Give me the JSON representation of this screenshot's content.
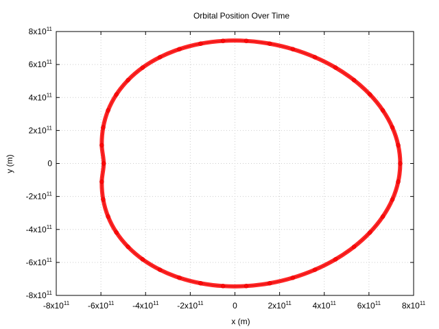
{
  "chart_data": {
    "type": "scatter",
    "title": "Orbital Position Over Time",
    "xlabel": "x (m)",
    "ylabel": "y (m)",
    "xlim": [
      -800000000000,
      800000000000
    ],
    "ylim": [
      -800000000000,
      800000000000
    ],
    "grid": true,
    "legend": "none",
    "x_ticks": [
      {
        "value": -800000000000,
        "mantissa": "-8",
        "base": "x10",
        "exp": "11"
      },
      {
        "value": -600000000000,
        "mantissa": "-6",
        "base": "x10",
        "exp": "11"
      },
      {
        "value": -400000000000,
        "mantissa": "-4",
        "base": "x10",
        "exp": "11"
      },
      {
        "value": -200000000000,
        "mantissa": "-2",
        "base": "x10",
        "exp": "11"
      },
      {
        "value": 0,
        "mantissa": "0",
        "base": "",
        "exp": ""
      },
      {
        "value": 200000000000,
        "mantissa": "2",
        "base": "x10",
        "exp": "11"
      },
      {
        "value": 400000000000,
        "mantissa": "4",
        "base": "x10",
        "exp": "11"
      },
      {
        "value": 600000000000,
        "mantissa": "6",
        "base": "x10",
        "exp": "11"
      },
      {
        "value": 800000000000,
        "mantissa": "8",
        "base": "x10",
        "exp": "11"
      }
    ],
    "y_ticks": [
      {
        "value": -800000000000,
        "mantissa": "-8",
        "base": "x10",
        "exp": "11"
      },
      {
        "value": -600000000000,
        "mantissa": "-6",
        "base": "x10",
        "exp": "11"
      },
      {
        "value": -400000000000,
        "mantissa": "-4",
        "base": "x10",
        "exp": "11"
      },
      {
        "value": -200000000000,
        "mantissa": "-2",
        "base": "x10",
        "exp": "11"
      },
      {
        "value": 0,
        "mantissa": "0",
        "base": "",
        "exp": ""
      },
      {
        "value": 200000000000,
        "mantissa": "2",
        "base": "x10",
        "exp": "11"
      },
      {
        "value": 400000000000,
        "mantissa": "4",
        "base": "x10",
        "exp": "11"
      },
      {
        "value": 600000000000,
        "mantissa": "6",
        "base": "x10",
        "exp": "11"
      },
      {
        "value": 800000000000,
        "mantissa": "8",
        "base": "x10",
        "exp": "11"
      }
    ],
    "series": [
      {
        "color": "#ff0000",
        "marker": "circle",
        "points": [
          [
            740000000000,
            0
          ],
          [
            731000000000,
            110500000000
          ],
          [
            704900000000,
            218600000000
          ],
          [
            662200000000,
            321900000000
          ],
          [
            604400000000,
            418200000000
          ],
          [
            533100000000,
            505300000000
          ],
          [
            450300000000,
            581300000000
          ],
          [
            358200000000,
            644300000000
          ],
          [
            259200000000,
            693000000000
          ],
          [
            155800000000,
            726200000000
          ],
          [
            50600000000,
            743100000000
          ],
          [
            -53200000000,
            743100000000
          ],
          [
            -153800000000,
            726200000000
          ],
          [
            -248900000000,
            693000000000
          ],
          [
            -336000000000,
            644300000000
          ],
          [
            -413300000000,
            581300000000
          ],
          [
            -478700000000,
            505300000000
          ],
          [
            -530700000000,
            418200000000
          ],
          [
            -567900000000,
            321900000000
          ],
          [
            -589800000000,
            218600000000
          ],
          [
            -596200000000,
            110500000000
          ],
          [
            -587500000000,
            0
          ],
          [
            -596200000000,
            -110500000000
          ],
          [
            -589800000000,
            -218600000000
          ],
          [
            -567900000000,
            -321900000000
          ],
          [
            -530700000000,
            -418200000000
          ],
          [
            -478700000000,
            -505300000000
          ],
          [
            -413300000000,
            -581300000000
          ],
          [
            -336000000000,
            -644300000000
          ],
          [
            -248900000000,
            -693000000000
          ],
          [
            -153800000000,
            -726200000000
          ],
          [
            -53200000000,
            -743100000000
          ],
          [
            50600000000,
            -743100000000
          ],
          [
            155800000000,
            -726200000000
          ],
          [
            259200000000,
            -693000000000
          ],
          [
            358200000000,
            -644300000000
          ],
          [
            450300000000,
            -581300000000
          ],
          [
            533100000000,
            -505300000000
          ],
          [
            604400000000,
            -418200000000
          ],
          [
            662200000000,
            -321900000000
          ],
          [
            704900000000,
            -218600000000
          ],
          [
            731000000000,
            -110500000000
          ]
        ]
      }
    ]
  }
}
